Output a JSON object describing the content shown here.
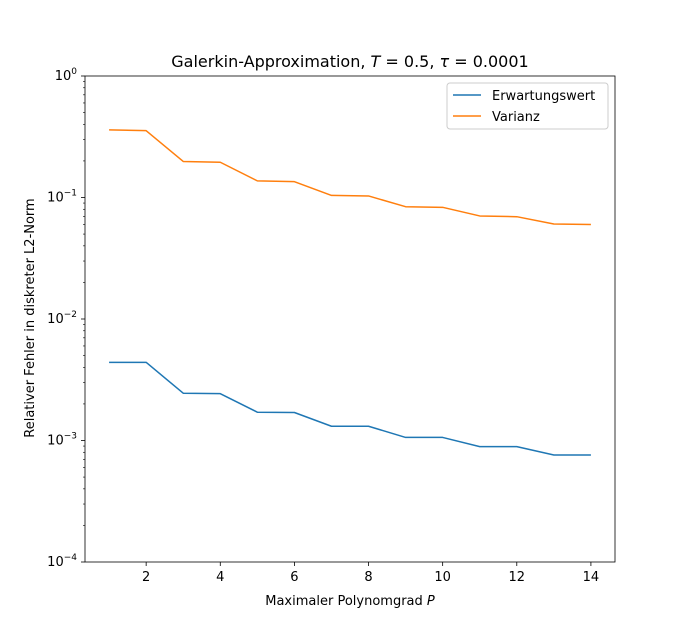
{
  "chart_data": {
    "type": "line",
    "title": "Galerkin-Approximation, T = 0.5, τ = 0.0001",
    "title_parts": {
      "prefix": "Galerkin-Approximation, ",
      "var1": "T",
      "eq1": " = 0.5, ",
      "var2": "τ",
      "eq2": " = 0.0001"
    },
    "xlabel": "Maximaler Polynomgrad P",
    "xlabel_parts": {
      "text": "Maximaler Polynomgrad ",
      "var": "P"
    },
    "ylabel": "Relativer Fehler in diskreter L2-Norm",
    "yscale": "log",
    "xlim": [
      0.35,
      14.65
    ],
    "ylim": [
      0.0001,
      1
    ],
    "xticks": [
      2,
      4,
      6,
      8,
      10,
      12,
      14
    ],
    "yticks": [
      {
        "value": 1,
        "base": "10",
        "exp": "0"
      },
      {
        "value": 0.1,
        "base": "10",
        "exp": "−1"
      },
      {
        "value": 0.01,
        "base": "10",
        "exp": "−2"
      },
      {
        "value": 0.001,
        "base": "10",
        "exp": "−3"
      },
      {
        "value": 0.0001,
        "base": "10",
        "exp": "−4"
      }
    ],
    "grid": false,
    "legend_position": "top-right",
    "x": [
      1,
      2,
      3,
      4,
      5,
      6,
      7,
      8,
      9,
      10,
      11,
      12,
      13,
      14
    ],
    "series": [
      {
        "name": "Erwartungswert",
        "color": "#1f77b4",
        "values": [
          0.0044,
          0.0044,
          0.00245,
          0.00243,
          0.00171,
          0.0017,
          0.00131,
          0.00131,
          0.00106,
          0.00106,
          0.00089,
          0.00089,
          0.00076,
          0.00076
        ]
      },
      {
        "name": "Varianz",
        "color": "#ff7f0e",
        "values": [
          0.36,
          0.355,
          0.198,
          0.195,
          0.137,
          0.135,
          0.104,
          0.103,
          0.084,
          0.083,
          0.0705,
          0.0695,
          0.0605,
          0.06
        ]
      }
    ]
  }
}
